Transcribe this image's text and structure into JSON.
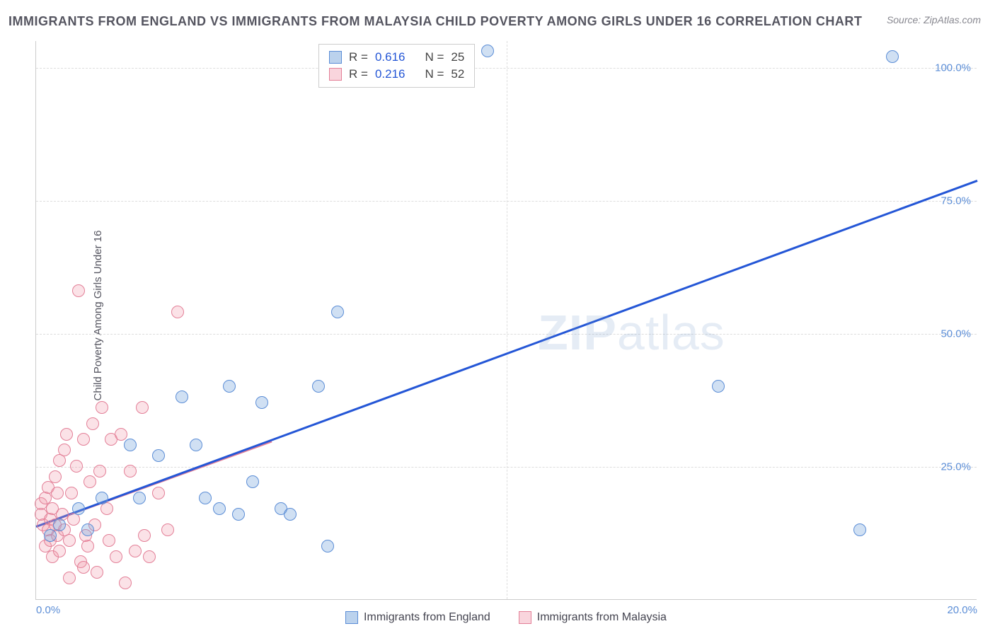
{
  "title": "IMMIGRANTS FROM ENGLAND VS IMMIGRANTS FROM MALAYSIA CHILD POVERTY AMONG GIRLS UNDER 16 CORRELATION CHART",
  "source_label": "Source: ZipAtlas.com",
  "y_axis_label": "Child Poverty Among Girls Under 16",
  "watermark_primary": "ZIP",
  "watermark_secondary": "atlas",
  "chart": {
    "type": "scatter",
    "background_color": "#ffffff",
    "grid_color": "#dddddd",
    "axis_color": "#cccccc",
    "tick_color": "#5b8dd6",
    "xlim": [
      0,
      20
    ],
    "ylim": [
      0,
      105
    ],
    "x_ticks": [
      {
        "pos": 0.0,
        "label": "0.0%"
      },
      {
        "pos": 20.0,
        "label": "20.0%"
      }
    ],
    "y_ticks": [
      {
        "pos": 25.0,
        "label": "25.0%"
      },
      {
        "pos": 50.0,
        "label": "50.0%"
      },
      {
        "pos": 75.0,
        "label": "75.0%"
      },
      {
        "pos": 100.0,
        "label": "100.0%"
      }
    ],
    "legend_top": [
      {
        "color": "blue",
        "r_label": "R =",
        "r_val": "0.616",
        "n_label": "N =",
        "n_val": "25"
      },
      {
        "color": "pink",
        "r_label": "R =",
        "r_val": "0.216",
        "n_label": "N =",
        "n_val": "52"
      }
    ],
    "legend_bottom": [
      {
        "color": "blue",
        "label": "Immigrants from England"
      },
      {
        "color": "pink",
        "label": "Immigrants from Malaysia"
      }
    ],
    "series": {
      "england": {
        "color": "#5b8dd6",
        "fill": "rgba(120,165,220,0.35)",
        "points": [
          [
            0.3,
            12
          ],
          [
            0.5,
            14
          ],
          [
            0.9,
            17
          ],
          [
            1.1,
            13
          ],
          [
            1.4,
            19
          ],
          [
            2.0,
            29
          ],
          [
            2.2,
            19
          ],
          [
            2.6,
            27
          ],
          [
            3.1,
            38
          ],
          [
            3.4,
            29
          ],
          [
            3.6,
            19
          ],
          [
            4.1,
            40
          ],
          [
            4.3,
            16
          ],
          [
            4.6,
            22
          ],
          [
            4.8,
            37
          ],
          [
            5.2,
            17
          ],
          [
            5.4,
            16
          ],
          [
            6.0,
            40
          ],
          [
            6.2,
            10
          ],
          [
            6.4,
            54
          ],
          [
            9.6,
            103
          ],
          [
            14.5,
            40
          ],
          [
            17.5,
            13
          ],
          [
            18.2,
            102
          ],
          [
            3.9,
            17
          ]
        ],
        "trend": {
          "x1": 0,
          "y1": 14,
          "x2": 20,
          "y2": 79
        }
      },
      "malaysia": {
        "color": "#e37f97",
        "fill": "rgba(240,150,170,0.28)",
        "points": [
          [
            0.1,
            18
          ],
          [
            0.1,
            16
          ],
          [
            0.15,
            14
          ],
          [
            0.2,
            19
          ],
          [
            0.2,
            10
          ],
          [
            0.25,
            21
          ],
          [
            0.25,
            13
          ],
          [
            0.3,
            15
          ],
          [
            0.3,
            11
          ],
          [
            0.35,
            17
          ],
          [
            0.35,
            8
          ],
          [
            0.4,
            23
          ],
          [
            0.4,
            14
          ],
          [
            0.45,
            20
          ],
          [
            0.45,
            12
          ],
          [
            0.5,
            26
          ],
          [
            0.5,
            9
          ],
          [
            0.55,
            16
          ],
          [
            0.6,
            28
          ],
          [
            0.6,
            13
          ],
          [
            0.65,
            31
          ],
          [
            0.7,
            11
          ],
          [
            0.75,
            20
          ],
          [
            0.8,
            15
          ],
          [
            0.85,
            25
          ],
          [
            0.9,
            58
          ],
          [
            0.95,
            7
          ],
          [
            1.0,
            30
          ],
          [
            1.05,
            12
          ],
          [
            1.1,
            10
          ],
          [
            1.15,
            22
          ],
          [
            1.2,
            33
          ],
          [
            1.25,
            14
          ],
          [
            1.3,
            5
          ],
          [
            1.35,
            24
          ],
          [
            1.4,
            36
          ],
          [
            1.5,
            17
          ],
          [
            1.55,
            11
          ],
          [
            1.6,
            30
          ],
          [
            1.7,
            8
          ],
          [
            1.8,
            31
          ],
          [
            1.9,
            3
          ],
          [
            2.0,
            24
          ],
          [
            2.1,
            9
          ],
          [
            2.25,
            36
          ],
          [
            2.3,
            12
          ],
          [
            2.4,
            8
          ],
          [
            2.6,
            20
          ],
          [
            2.8,
            13
          ],
          [
            3.0,
            54
          ],
          [
            1.0,
            6
          ],
          [
            0.7,
            4
          ]
        ],
        "trend": {
          "x1": 0,
          "y1": 14,
          "x2": 5.0,
          "y2": 30
        }
      }
    }
  }
}
